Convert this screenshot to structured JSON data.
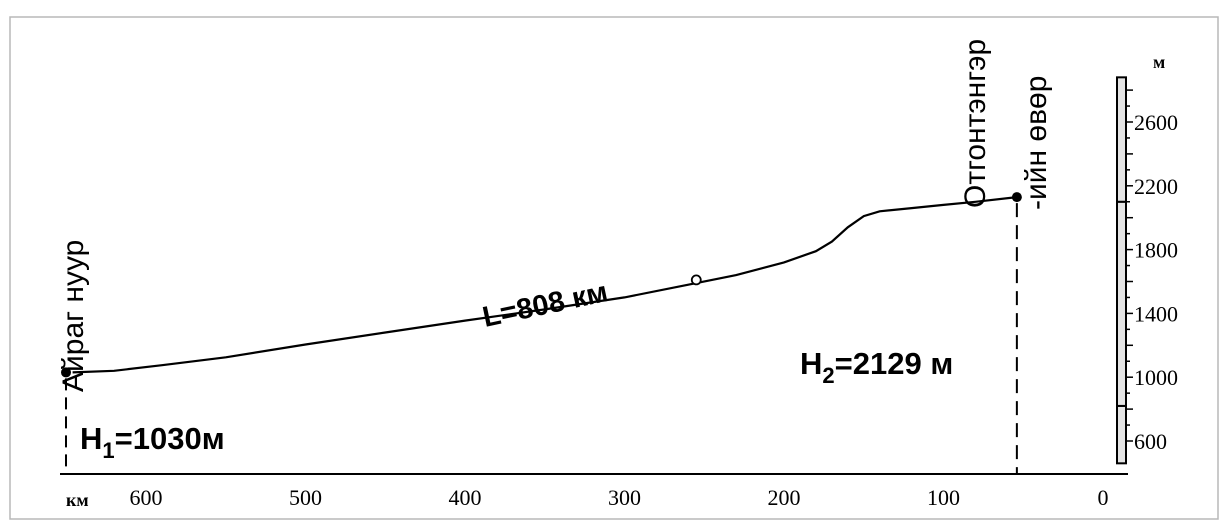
{
  "chart_data": {
    "type": "line",
    "xlabel": "км",
    "ylabel": "м",
    "xlim": [
      680,
      -20
    ],
    "ylim": [
      460,
      2880
    ],
    "x_ticks": [
      "600",
      "500",
      "400",
      "300",
      "200",
      "100",
      "0"
    ],
    "y_ticks": [
      "600",
      "1000",
      "1400",
      "1800",
      "2200",
      "2600"
    ],
    "series": [
      {
        "x": [
          646,
          620,
          590,
          550,
          500,
          450,
          400,
          350,
          300,
          260,
          230,
          200,
          180,
          170,
          160,
          150,
          140,
          120,
          100,
          80,
          54
        ],
        "y": [
          1030,
          1040,
          1075,
          1125,
          1205,
          1280,
          1355,
          1425,
          1500,
          1580,
          1640,
          1720,
          1790,
          1850,
          1940,
          2010,
          2040,
          2060,
          2080,
          2100,
          2129
        ]
      }
    ],
    "annotations": {
      "start_label": "Айраг нуур",
      "end_label_line1": "Отгонтэнгэр",
      "end_label_line2": "-ийн өвөр",
      "length_label": "L=808 км",
      "h1": {
        "prefix": "H",
        "sub": "1",
        "suffix": "=1030м"
      },
      "h2": {
        "prefix": "H",
        "sub": "2",
        "suffix": "=2129 м"
      }
    },
    "start_point": {
      "x": 646,
      "y": 1030
    },
    "end_point": {
      "x": 54,
      "y": 2129
    },
    "mid_marker": {
      "x": 255,
      "y": 1610
    }
  }
}
